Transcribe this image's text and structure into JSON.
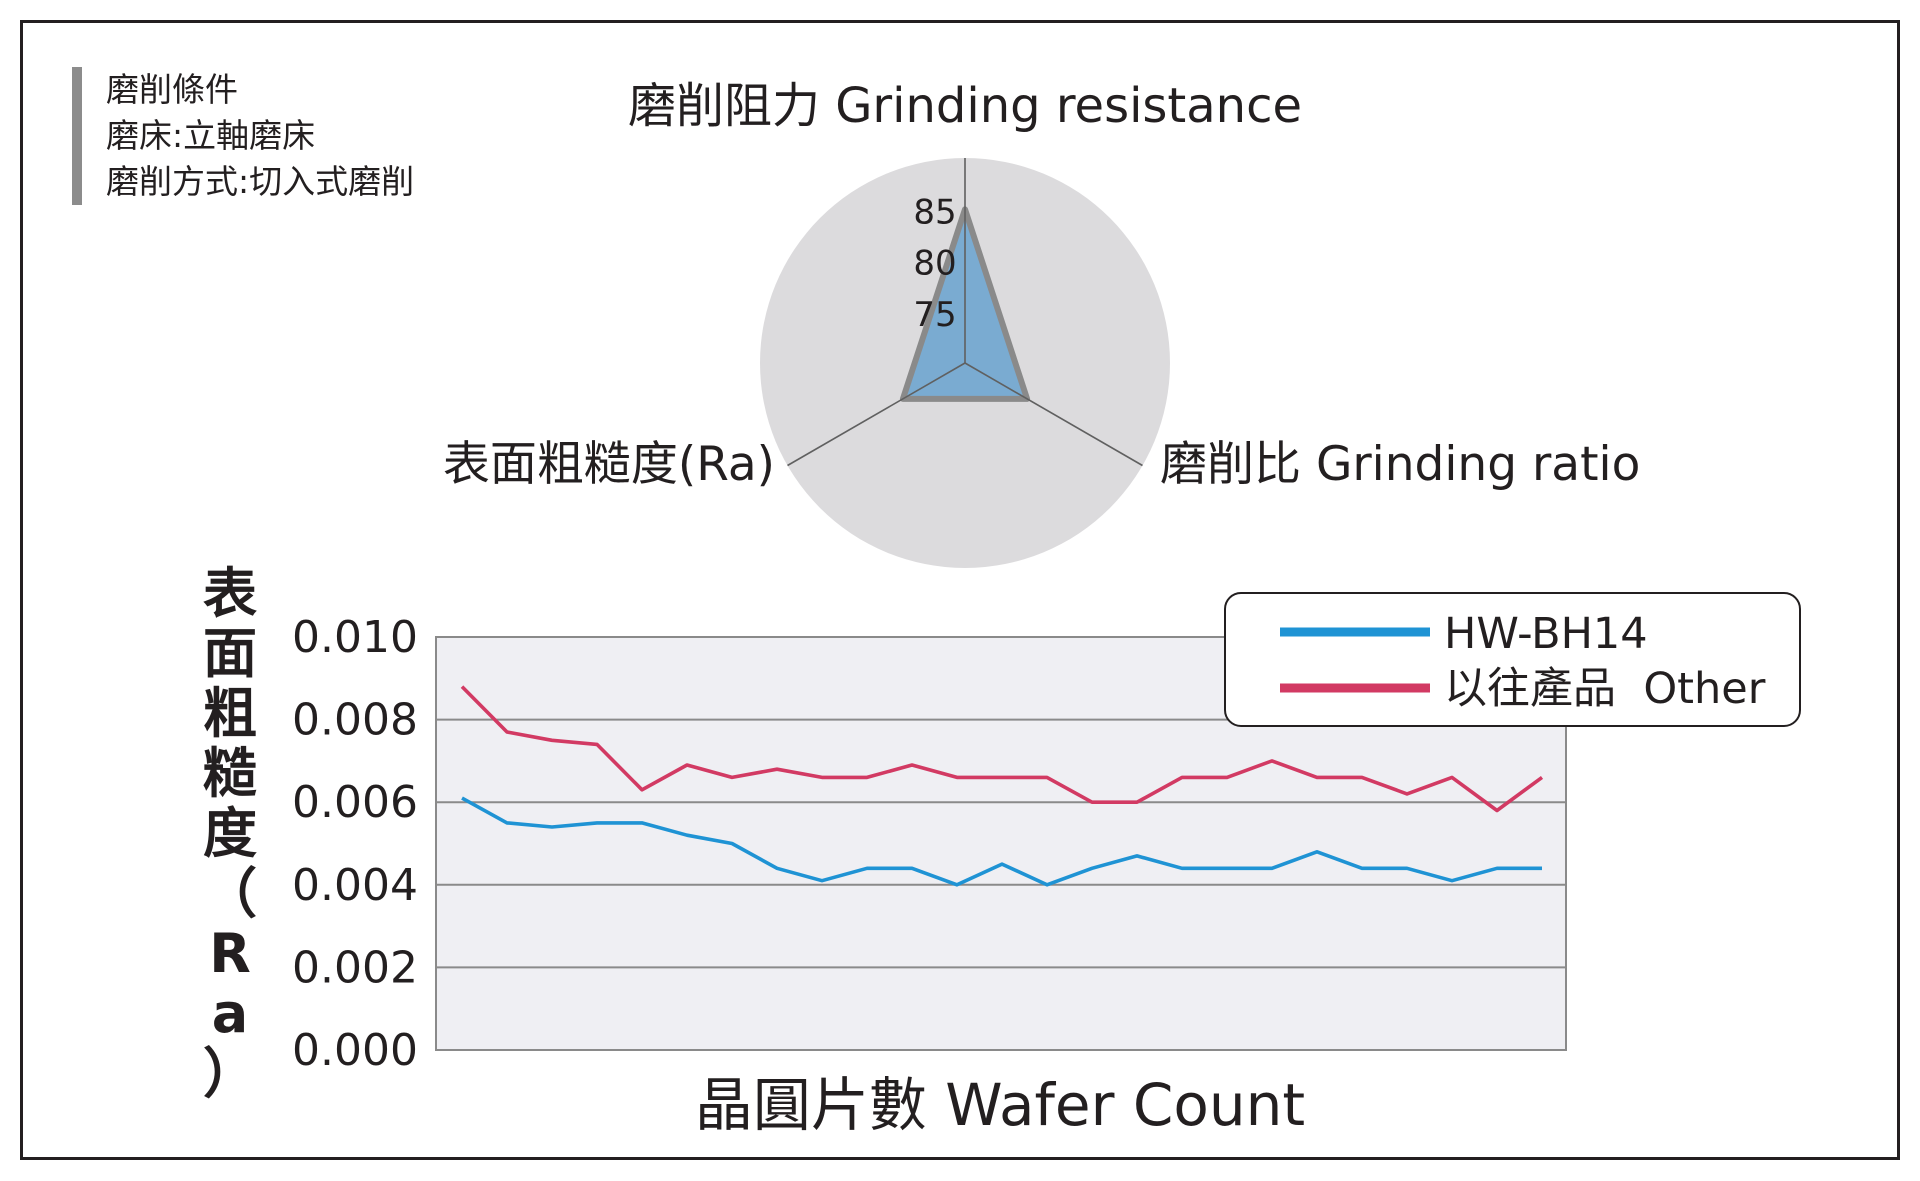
{
  "conditions": {
    "title": "磨削條件",
    "machine": "磨床:立軸磨床",
    "method": "磨削方式:切入式磨削"
  },
  "chart_data": [
    {
      "type": "radar",
      "axes": [
        "磨削阻力 Grinding resistance",
        "磨削比 Grinding ratio",
        "表面粗糙度(Ra)"
      ],
      "ticks": [
        "75",
        "80",
        "85"
      ],
      "range": [
        70,
        90
      ],
      "series": [
        {
          "values": [
            85,
            77,
            77
          ]
        }
      ],
      "colors": {
        "fill": "#7aabd1",
        "stroke": "#8a8a8a",
        "background": "#dcdbdd"
      }
    },
    {
      "type": "line",
      "xlabel": "晶圓片數 Wafer Count",
      "ylabel": "表面粗糙度（Ra）",
      "ylim": [
        0,
        0.01
      ],
      "yticks": [
        "0.000",
        "0.002",
        "0.004",
        "0.006",
        "0.008",
        "0.010"
      ],
      "grid": true,
      "legend": "top-right",
      "series": [
        {
          "name": "HW-BH14",
          "color": "#1f93d4",
          "values": [
            0.0061,
            0.0055,
            0.0054,
            0.0055,
            0.0055,
            0.0052,
            0.005,
            0.0044,
            0.0041,
            0.0044,
            0.0044,
            0.004,
            0.0045,
            0.004,
            0.0044,
            0.0047,
            0.0044,
            0.0044,
            0.0044,
            0.0048,
            0.0044,
            0.0044,
            0.0041,
            0.0044,
            0.0044
          ]
        },
        {
          "name": "以往產品  Other",
          "color": "#d23a63",
          "values": [
            0.0088,
            0.0077,
            0.0075,
            0.0074,
            0.0063,
            0.0069,
            0.0066,
            0.0068,
            0.0066,
            0.0066,
            0.0069,
            0.0066,
            0.0066,
            0.0066,
            0.006,
            0.006,
            0.0066,
            0.0066,
            0.007,
            0.0066,
            0.0066,
            0.0062,
            0.0066,
            0.0058,
            0.0066
          ]
        }
      ]
    }
  ]
}
